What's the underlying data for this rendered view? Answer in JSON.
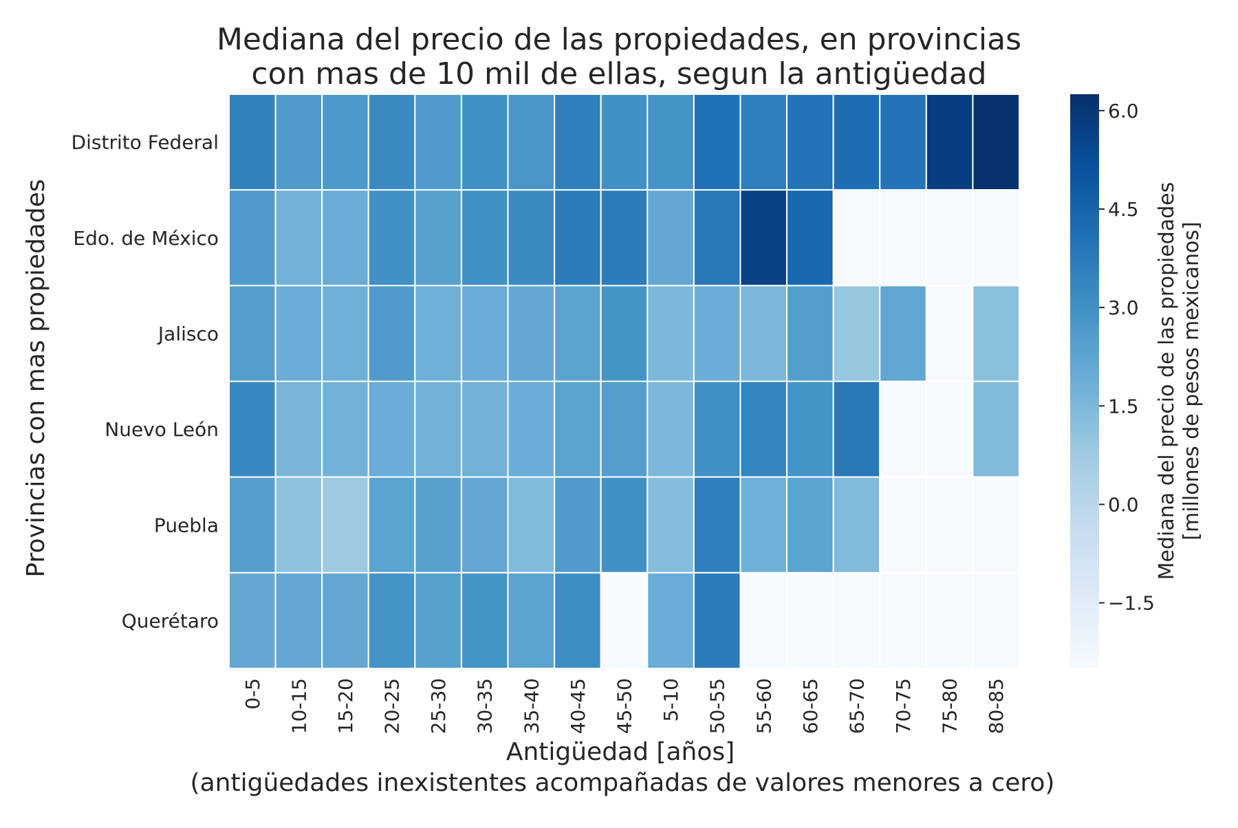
{
  "chart_data": {
    "type": "heatmap",
    "title_lines": [
      "Mediana del precio de las propiedades, en provincias",
      "con mas de 10 mil de ellas, segun la antigüedad"
    ],
    "xlabel_lines": [
      "Antigüedad [años]",
      "(antigüedades inexistentes acompañadas de valores menores a cero)"
    ],
    "ylabel": "Provincias con mas propiedades",
    "x_categories": [
      "0-5",
      "10-15",
      "15-20",
      "20-25",
      "25-30",
      "30-35",
      "35-40",
      "40-45",
      "45-50",
      "5-10",
      "50-55",
      "55-60",
      "60-65",
      "65-70",
      "70-75",
      "75-80",
      "80-85"
    ],
    "y_categories": [
      "Distrito Federal",
      "Edo. de México",
      "Jalisco",
      "Nuevo León",
      "Puebla",
      "Querétaro"
    ],
    "values": [
      [
        3.5,
        2.6,
        2.7,
        3.2,
        2.6,
        3.0,
        2.8,
        3.6,
        3.0,
        2.9,
        4.1,
        3.6,
        4.0,
        4.2,
        4.0,
        5.8,
        6.2
      ],
      [
        2.6,
        1.7,
        1.9,
        3.0,
        2.4,
        3.0,
        3.2,
        3.7,
        3.7,
        2.1,
        3.8,
        5.7,
        4.4,
        -2.5,
        -2.5,
        -2.5,
        -2.5
      ],
      [
        2.5,
        1.9,
        1.8,
        2.6,
        1.8,
        1.9,
        2.1,
        2.3,
        2.9,
        1.5,
        1.9,
        1.5,
        2.5,
        0.9,
        2.2,
        -2.5,
        1.2
      ],
      [
        3.3,
        1.6,
        1.7,
        1.9,
        1.7,
        1.7,
        1.9,
        2.3,
        2.5,
        1.5,
        3.0,
        3.4,
        2.9,
        3.8,
        -2.5,
        -2.5,
        1.4
      ],
      [
        2.5,
        1.1,
        0.8,
        2.3,
        2.4,
        2.1,
        1.4,
        2.6,
        3.0,
        1.3,
        3.6,
        1.8,
        2.3,
        1.4,
        -2.5,
        -2.5,
        -2.5
      ],
      [
        2.1,
        2.1,
        2.1,
        2.9,
        2.4,
        2.9,
        2.3,
        3.1,
        -2.5,
        1.9,
        3.7,
        -2.5,
        -2.5,
        -2.5,
        -2.5,
        -2.5,
        -2.5
      ]
    ],
    "colorbar": {
      "label_lines": [
        "Mediana del precio de las propiedades",
        "[millones de pesos mexicanos]"
      ],
      "min": -2.5,
      "max": 6.25,
      "ticks": [
        6.0,
        4.5,
        3.0,
        1.5,
        0.0,
        -1.5
      ],
      "tick_labels": [
        "6.0",
        "4.5",
        "3.0",
        "1.5",
        "0.0",
        "−1.5"
      ]
    },
    "colormap": "Blues",
    "colormap_stops": [
      "#f7fbff",
      "#deebf7",
      "#c6dbef",
      "#9ecae1",
      "#6baed6",
      "#4292c6",
      "#2171b5",
      "#08519c",
      "#08306b"
    ]
  }
}
